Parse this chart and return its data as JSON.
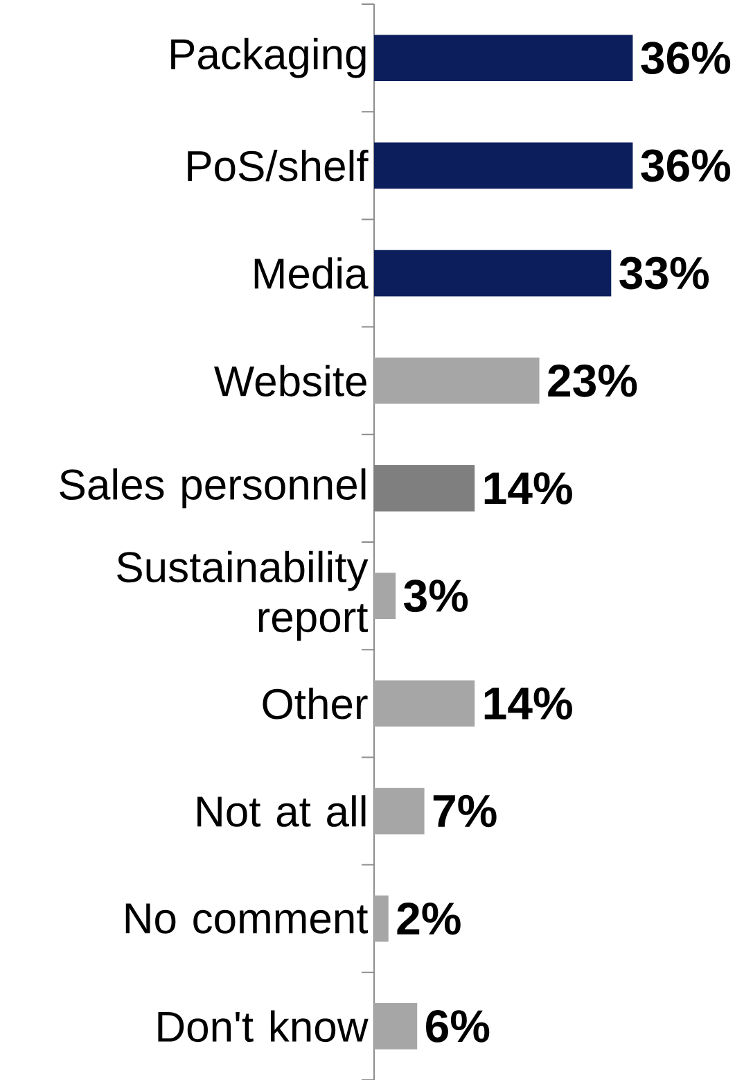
{
  "chart_data": {
    "type": "bar",
    "orientation": "horizontal",
    "categories": [
      "Packaging",
      "PoS/shelf",
      "Media",
      "Website",
      "Sales personnel",
      "Sustainability report",
      "Other",
      "Not at all",
      "No comment",
      "Don't know"
    ],
    "values": [
      36,
      36,
      33,
      23,
      14,
      3,
      14,
      7,
      2,
      6
    ],
    "value_labels": [
      "36%",
      "36%",
      "33%",
      "23%",
      "14%",
      "3%",
      "14%",
      "7%",
      "2%",
      "6%"
    ],
    "colors": [
      "#0c1f5c",
      "#0c1f5c",
      "#0c1f5c",
      "#a6a6a6",
      "#7f7f7f",
      "#a6a6a6",
      "#a6a6a6",
      "#a6a6a6",
      "#a6a6a6",
      "#a6a6a6"
    ],
    "tick_labels": "y"
  }
}
